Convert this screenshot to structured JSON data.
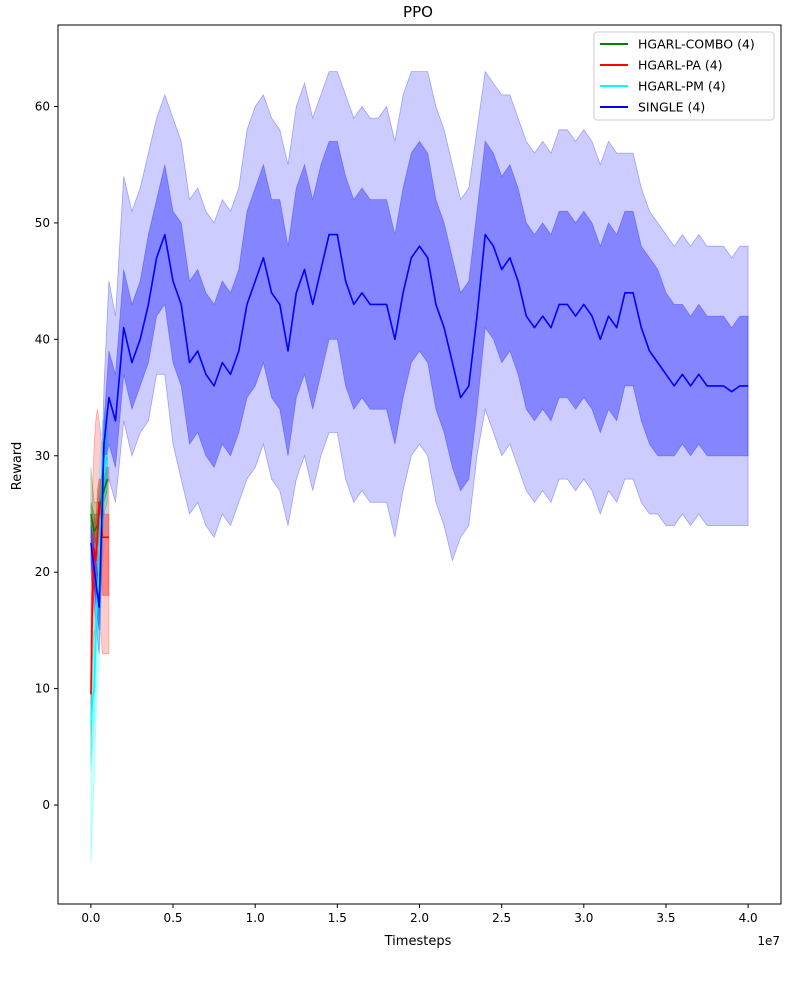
{
  "chart_data": {
    "type": "line",
    "title": "PPO",
    "xlabel": "Timesteps",
    "ylabel": "Reward",
    "x_offset_label": "1e7",
    "xlim": [
      -2000000,
      42000000
    ],
    "ylim": [
      -8.5,
      67
    ],
    "x_ticks": [
      0,
      5000000,
      10000000,
      15000000,
      20000000,
      25000000,
      30000000,
      35000000,
      40000000
    ],
    "x_tick_labels": [
      "0.0",
      "0.5",
      "1.0",
      "1.5",
      "2.0",
      "2.5",
      "3.0",
      "3.5",
      "4.0"
    ],
    "y_ticks": [
      0,
      10,
      20,
      30,
      40,
      50,
      60
    ],
    "y_tick_labels": [
      "0",
      "10",
      "20",
      "30",
      "40",
      "50",
      "60"
    ],
    "grid": false,
    "legend_position": "top-right",
    "series": [
      {
        "name": "HGARL-COMBO (4)",
        "color": "#008000",
        "x": [
          0,
          200000,
          400000,
          600000,
          800000,
          1000000
        ],
        "mean": [
          25,
          23.5,
          24,
          26,
          27,
          28
        ],
        "inner": [
          [
            24,
            26
          ],
          [
            22.5,
            25
          ],
          [
            23,
            25
          ],
          [
            25,
            27
          ],
          [
            26,
            28
          ],
          [
            27,
            29
          ]
        ],
        "outer": [
          [
            23,
            29
          ],
          [
            21.5,
            26
          ],
          [
            22,
            26
          ],
          [
            24,
            28
          ],
          [
            25,
            29
          ],
          [
            26,
            30
          ]
        ]
      },
      {
        "name": "HGARL-PA (4)",
        "color": "#ff0000",
        "x": [
          0,
          100000,
          200000,
          300000,
          400000,
          500000,
          600000,
          700000,
          800000,
          900000,
          1000000,
          1100000
        ],
        "mean": [
          9.5,
          18,
          22,
          21,
          23,
          26,
          25,
          23,
          23,
          23,
          23,
          23
        ],
        "inner": [
          [
            6,
            14
          ],
          [
            15,
            22
          ],
          [
            19,
            25
          ],
          [
            18,
            24
          ],
          [
            20,
            27
          ],
          [
            22,
            28
          ],
          [
            21,
            28
          ],
          [
            18,
            26
          ],
          [
            18,
            25
          ],
          [
            18,
            25
          ],
          [
            18,
            25
          ],
          [
            18,
            25
          ]
        ],
        "outer": [
          [
            4,
            17
          ],
          [
            12,
            27
          ],
          [
            15,
            31
          ],
          [
            14,
            33
          ],
          [
            16,
            34
          ],
          [
            18,
            33
          ],
          [
            15,
            32
          ],
          [
            13,
            30
          ],
          [
            13,
            29
          ],
          [
            13,
            29
          ],
          [
            13,
            29
          ],
          [
            13,
            29
          ]
        ]
      },
      {
        "name": "HGARL-PM (4)",
        "color": "#00ffff",
        "x": [
          0,
          100000,
          200000,
          300000,
          400000,
          500000,
          600000,
          700000,
          800000,
          900000,
          1000000
        ],
        "mean": [
          7,
          9,
          10,
          15,
          18,
          20,
          24,
          27,
          29,
          30,
          30
        ],
        "inner": [
          [
            3,
            11
          ],
          [
            5,
            13
          ],
          [
            7,
            13
          ],
          [
            12,
            18
          ],
          [
            15,
            21
          ],
          [
            17,
            23
          ],
          [
            21,
            27
          ],
          [
            24,
            30
          ],
          [
            26,
            31
          ],
          [
            27,
            32
          ],
          [
            27,
            32
          ]
        ],
        "outer": [
          [
            -5,
            17
          ],
          [
            -1,
            17
          ],
          [
            2,
            18
          ],
          [
            7,
            22
          ],
          [
            10,
            25
          ],
          [
            12,
            28
          ],
          [
            16,
            31
          ],
          [
            20,
            33
          ],
          [
            22,
            33
          ],
          [
            23,
            34
          ],
          [
            23,
            34
          ]
        ]
      },
      {
        "name": "SINGLE (4)",
        "color": "#0000ff",
        "x": [
          0,
          500000,
          800000,
          1100000,
          1500000,
          2000000,
          2500000,
          3000000,
          3500000,
          4000000,
          4500000,
          5000000,
          5500000,
          6000000,
          6500000,
          7000000,
          7500000,
          8000000,
          8500000,
          9000000,
          9500000,
          10000000,
          10500000,
          11000000,
          11500000,
          12000000,
          12500000,
          13000000,
          13500000,
          14000000,
          14500000,
          15000000,
          15500000,
          16000000,
          16500000,
          17000000,
          17500000,
          18000000,
          18500000,
          19000000,
          19500000,
          20000000,
          20500000,
          21000000,
          21500000,
          22000000,
          22500000,
          23000000,
          23500000,
          24000000,
          24500000,
          25000000,
          25500000,
          26000000,
          26500000,
          27000000,
          27500000,
          28000000,
          28500000,
          29000000,
          29500000,
          30000000,
          30500000,
          31000000,
          31500000,
          32000000,
          32500000,
          33000000,
          33500000,
          34000000,
          34500000,
          35000000,
          35500000,
          36000000,
          36500000,
          37000000,
          37500000,
          38000000,
          38500000,
          39000000,
          39500000,
          40000000
        ],
        "mean": [
          22.5,
          17,
          31,
          35,
          33,
          41,
          38,
          40,
          43,
          47,
          49,
          45,
          43,
          38,
          39,
          37,
          36,
          38,
          37,
          39,
          43,
          45,
          47,
          44,
          43,
          39,
          44,
          46,
          43,
          46,
          49,
          49,
          45,
          43,
          44,
          43,
          43,
          43,
          40,
          44,
          47,
          48,
          47,
          43,
          41,
          38,
          35,
          36,
          42,
          49,
          48,
          46,
          47,
          45,
          42,
          41,
          42,
          41,
          43,
          43,
          42,
          43,
          42,
          40,
          42,
          41,
          44,
          44,
          41,
          39,
          38,
          37,
          36,
          37,
          36,
          37,
          36,
          36,
          36,
          35.5,
          36,
          36
        ],
        "inner": [
          [
            21,
            24
          ],
          [
            15,
            19
          ],
          [
            29,
            33
          ],
          [
            31,
            39
          ],
          [
            29,
            37
          ],
          [
            37,
            46
          ],
          [
            34,
            43
          ],
          [
            36,
            45
          ],
          [
            38,
            49
          ],
          [
            42,
            52
          ],
          [
            43,
            55
          ],
          [
            38,
            51
          ],
          [
            36,
            50
          ],
          [
            31,
            45
          ],
          [
            32,
            46
          ],
          [
            30,
            44
          ],
          [
            29,
            43
          ],
          [
            31,
            45
          ],
          [
            30,
            44
          ],
          [
            32,
            46
          ],
          [
            35,
            51
          ],
          [
            36,
            53
          ],
          [
            38,
            55
          ],
          [
            35,
            52
          ],
          [
            34,
            52
          ],
          [
            30,
            48
          ],
          [
            35,
            53
          ],
          [
            37,
            55
          ],
          [
            34,
            52
          ],
          [
            37,
            55
          ],
          [
            40,
            57
          ],
          [
            40,
            57
          ],
          [
            36,
            54
          ],
          [
            34,
            52
          ],
          [
            35,
            53
          ],
          [
            34,
            52
          ],
          [
            34,
            52
          ],
          [
            34,
            52
          ],
          [
            31,
            49
          ],
          [
            35,
            53
          ],
          [
            38,
            56
          ],
          [
            39,
            57
          ],
          [
            38,
            56
          ],
          [
            34,
            52
          ],
          [
            32,
            50
          ],
          [
            29,
            47
          ],
          [
            27,
            44
          ],
          [
            28,
            45
          ],
          [
            34,
            51
          ],
          [
            41,
            57
          ],
          [
            40,
            56
          ],
          [
            38,
            54
          ],
          [
            39,
            55
          ],
          [
            37,
            53
          ],
          [
            34,
            50
          ],
          [
            33,
            49
          ],
          [
            34,
            50
          ],
          [
            33,
            49
          ],
          [
            35,
            51
          ],
          [
            35,
            51
          ],
          [
            34,
            50
          ],
          [
            35,
            51
          ],
          [
            34,
            50
          ],
          [
            32,
            48
          ],
          [
            34,
            50
          ],
          [
            33,
            49
          ],
          [
            36,
            51
          ],
          [
            36,
            51
          ],
          [
            33,
            48
          ],
          [
            31,
            47
          ],
          [
            30,
            46
          ],
          [
            30,
            44
          ],
          [
            30,
            43
          ],
          [
            31,
            43
          ],
          [
            30,
            42
          ],
          [
            31,
            43
          ],
          [
            30,
            42
          ],
          [
            30,
            42
          ],
          [
            30,
            42
          ],
          [
            30,
            41
          ],
          [
            30,
            42
          ],
          [
            30,
            42
          ]
        ],
        "outer": [
          [
            20,
            25
          ],
          [
            13,
            21
          ],
          [
            27,
            36
          ],
          [
            28,
            45
          ],
          [
            26,
            42
          ],
          [
            33,
            54
          ],
          [
            30,
            51
          ],
          [
            32,
            53
          ],
          [
            33,
            56
          ],
          [
            37,
            59
          ],
          [
            37,
            61
          ],
          [
            31,
            59
          ],
          [
            28,
            57
          ],
          [
            25,
            52
          ],
          [
            26,
            53
          ],
          [
            24,
            51
          ],
          [
            23,
            50
          ],
          [
            25,
            52
          ],
          [
            24,
            51
          ],
          [
            26,
            53
          ],
          [
            28,
            58
          ],
          [
            29,
            60
          ],
          [
            31,
            61
          ],
          [
            28,
            59
          ],
          [
            27,
            58
          ],
          [
            24,
            55
          ],
          [
            28,
            60
          ],
          [
            30,
            62
          ],
          [
            27,
            59
          ],
          [
            30,
            61
          ],
          [
            32,
            63
          ],
          [
            32,
            63
          ],
          [
            28,
            61
          ],
          [
            26,
            59
          ],
          [
            27,
            60
          ],
          [
            26,
            59
          ],
          [
            26,
            59
          ],
          [
            26,
            60
          ],
          [
            23,
            57
          ],
          [
            27,
            61
          ],
          [
            30,
            63
          ],
          [
            31,
            63
          ],
          [
            30,
            63
          ],
          [
            26,
            60
          ],
          [
            24,
            58
          ],
          [
            21,
            55
          ],
          [
            23,
            52
          ],
          [
            24,
            53
          ],
          [
            30,
            58
          ],
          [
            34,
            63
          ],
          [
            32,
            62
          ],
          [
            30,
            61
          ],
          [
            31,
            61
          ],
          [
            29,
            59
          ],
          [
            27,
            57
          ],
          [
            26,
            56
          ],
          [
            27,
            57
          ],
          [
            26,
            56
          ],
          [
            28,
            58
          ],
          [
            28,
            58
          ],
          [
            27,
            57
          ],
          [
            28,
            58
          ],
          [
            27,
            57
          ],
          [
            25,
            55
          ],
          [
            27,
            57
          ],
          [
            26,
            56
          ],
          [
            28,
            56
          ],
          [
            28,
            56
          ],
          [
            26,
            53
          ],
          [
            25,
            51
          ],
          [
            25,
            50
          ],
          [
            24,
            49
          ],
          [
            24,
            48
          ],
          [
            25,
            49
          ],
          [
            24,
            48
          ],
          [
            25,
            49
          ],
          [
            24,
            48
          ],
          [
            24,
            48
          ],
          [
            24,
            48
          ],
          [
            24,
            47
          ],
          [
            24,
            48
          ],
          [
            24,
            48
          ]
        ]
      }
    ]
  }
}
